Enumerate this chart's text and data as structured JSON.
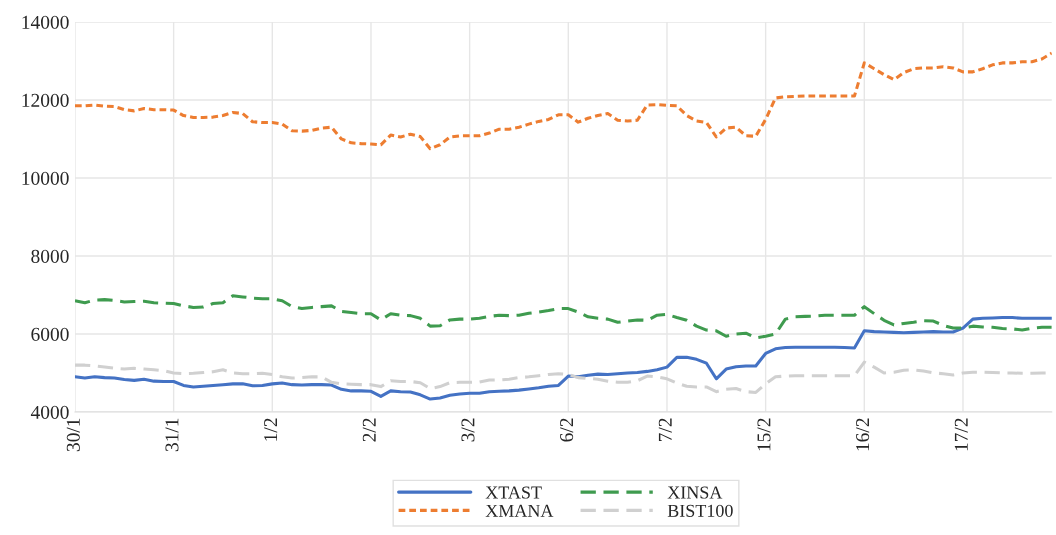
{
  "chart_data": {
    "type": "line",
    "categories": [
      "30/1",
      null,
      null,
      null,
      null,
      null,
      null,
      null,
      null,
      null,
      "31/1",
      null,
      null,
      null,
      null,
      null,
      null,
      null,
      null,
      null,
      "1/2",
      null,
      null,
      null,
      null,
      null,
      null,
      null,
      null,
      null,
      "2/2",
      null,
      null,
      null,
      null,
      null,
      null,
      null,
      null,
      null,
      "3/2",
      null,
      null,
      null,
      null,
      null,
      null,
      null,
      null,
      null,
      "6/2",
      null,
      null,
      null,
      null,
      null,
      null,
      null,
      null,
      null,
      "7/2",
      null,
      null,
      null,
      null,
      null,
      null,
      null,
      null,
      null,
      "15/2",
      null,
      null,
      null,
      null,
      null,
      null,
      null,
      null,
      null,
      "16/2",
      null,
      null,
      null,
      null,
      null,
      null,
      null,
      null,
      null,
      "17/2",
      null,
      null,
      null,
      null,
      null,
      null,
      null,
      null,
      null
    ],
    "series": [
      {
        "name": "XTAST",
        "color": "#4472c4",
        "line_style": "solid",
        "values": [
          4900,
          4870,
          4900,
          4880,
          4870,
          4830,
          4810,
          4840,
          4790,
          4780,
          4780,
          4680,
          4640,
          4660,
          4680,
          4700,
          4720,
          4720,
          4670,
          4680,
          4720,
          4740,
          4700,
          4690,
          4700,
          4700,
          4690,
          4580,
          4540,
          4540,
          4530,
          4400,
          4540,
          4520,
          4510,
          4440,
          4330,
          4360,
          4430,
          4460,
          4480,
          4480,
          4520,
          4530,
          4540,
          4560,
          4590,
          4620,
          4660,
          4680,
          4920,
          4900,
          4940,
          4970,
          4960,
          4980,
          5000,
          5010,
          5040,
          5080,
          5150,
          5400,
          5400,
          5350,
          5250,
          4850,
          5100,
          5160,
          5180,
          5180,
          5500,
          5620,
          5650,
          5660,
          5660,
          5660,
          5660,
          5660,
          5650,
          5640,
          6080,
          6060,
          6050,
          6040,
          6030,
          6040,
          6050,
          6060,
          6050,
          6050,
          6150,
          6380,
          6400,
          6410,
          6420,
          6420,
          6400,
          6400,
          6400,
          6400
        ]
      },
      {
        "name": "XMANA",
        "color": "#ed7d31",
        "line_style": "dotted",
        "values": [
          11850,
          11850,
          11870,
          11840,
          11830,
          11750,
          11720,
          11780,
          11750,
          11750,
          11740,
          11600,
          11550,
          11550,
          11560,
          11600,
          11680,
          11650,
          11440,
          11420,
          11420,
          11380,
          11210,
          11200,
          11220,
          11280,
          11300,
          11000,
          10900,
          10880,
          10870,
          10850,
          11100,
          11050,
          11120,
          11060,
          10750,
          10850,
          11050,
          11080,
          11080,
          11080,
          11150,
          11250,
          11250,
          11300,
          11380,
          11450,
          11500,
          11620,
          11620,
          11430,
          11530,
          11600,
          11650,
          11480,
          11460,
          11480,
          11870,
          11880,
          11860,
          11850,
          11600,
          11460,
          11420,
          11050,
          11280,
          11300,
          11080,
          11070,
          11500,
          12050,
          12080,
          12090,
          12100,
          12100,
          12100,
          12100,
          12100,
          12100,
          12950,
          12800,
          12650,
          12520,
          12700,
          12800,
          12820,
          12820,
          12850,
          12820,
          12720,
          12720,
          12800,
          12900,
          12950,
          12950,
          12980,
          12980,
          13050,
          13200
        ]
      },
      {
        "name": "XINSA",
        "color": "#3f9b4f",
        "line_style": "dashed",
        "values": [
          6850,
          6800,
          6870,
          6880,
          6860,
          6820,
          6830,
          6840,
          6800,
          6790,
          6780,
          6720,
          6680,
          6690,
          6780,
          6800,
          6980,
          6950,
          6920,
          6900,
          6900,
          6850,
          6700,
          6650,
          6680,
          6700,
          6720,
          6580,
          6550,
          6520,
          6520,
          6360,
          6520,
          6480,
          6470,
          6400,
          6200,
          6210,
          6360,
          6380,
          6380,
          6400,
          6450,
          6480,
          6470,
          6480,
          6530,
          6560,
          6600,
          6650,
          6650,
          6560,
          6440,
          6400,
          6380,
          6300,
          6330,
          6360,
          6350,
          6480,
          6500,
          6420,
          6350,
          6200,
          6100,
          6080,
          5940,
          6000,
          6020,
          5900,
          5940,
          6000,
          6380,
          6440,
          6450,
          6460,
          6480,
          6480,
          6480,
          6480,
          6700,
          6520,
          6350,
          6230,
          6270,
          6300,
          6340,
          6330,
          6220,
          6150,
          6150,
          6200,
          6180,
          6170,
          6140,
          6130,
          6100,
          6150,
          6170,
          6170
        ]
      },
      {
        "name": "BIST100",
        "color": "#d0d0d0",
        "line_style": "dashed",
        "values": [
          5200,
          5200,
          5180,
          5150,
          5120,
          5100,
          5120,
          5100,
          5080,
          5060,
          5000,
          4980,
          4990,
          5010,
          5030,
          5080,
          5000,
          4980,
          4980,
          4990,
          4960,
          4900,
          4870,
          4880,
          4900,
          4900,
          4760,
          4720,
          4710,
          4700,
          4700,
          4650,
          4800,
          4780,
          4780,
          4750,
          4600,
          4650,
          4750,
          4760,
          4760,
          4770,
          4820,
          4820,
          4840,
          4880,
          4900,
          4930,
          4960,
          4980,
          4960,
          4880,
          4860,
          4840,
          4790,
          4760,
          4760,
          4800,
          4920,
          4900,
          4850,
          4740,
          4660,
          4640,
          4640,
          4520,
          4580,
          4600,
          4520,
          4500,
          4720,
          4900,
          4920,
          4930,
          4930,
          4930,
          4930,
          4930,
          4930,
          4930,
          5280,
          5150,
          5000,
          5020,
          5070,
          5080,
          5050,
          5000,
          4980,
          4950,
          5000,
          5020,
          5020,
          5010,
          5000,
          5000,
          4990,
          4990,
          5000,
          5000
        ]
      }
    ],
    "ylim": [
      4000,
      14000
    ],
    "yticks": [
      4000,
      6000,
      8000,
      10000,
      12000,
      14000
    ],
    "grid": true,
    "legend": "bottom"
  }
}
